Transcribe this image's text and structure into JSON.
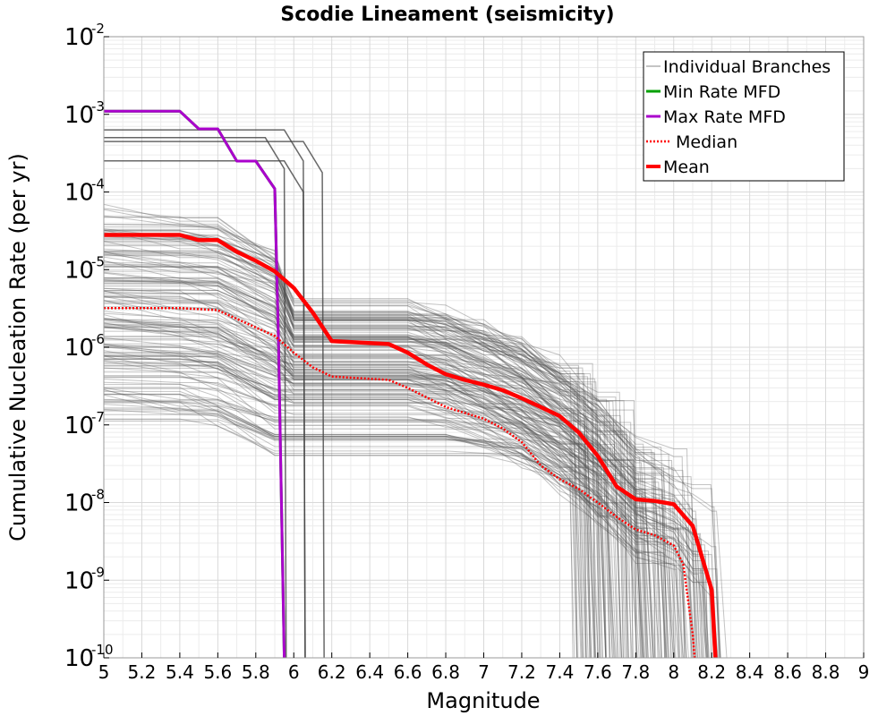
{
  "chart_data": {
    "type": "line",
    "title": "Scodie Lineament (seismicity)",
    "xlabel": "Magnitude",
    "ylabel": "Cumulative Nucleation Rate (per yr)",
    "xlim": [
      5,
      9
    ],
    "ylim_log10": [
      -10,
      -2
    ],
    "y_scale": "log",
    "grid": true,
    "legend_position": "top-right",
    "x_ticks": [
      "5",
      "5.2",
      "5.4",
      "5.6",
      "5.8",
      "6",
      "6.2",
      "6.4",
      "6.6",
      "6.8",
      "7",
      "7.2",
      "7.4",
      "7.6",
      "7.8",
      "8",
      "8.2",
      "8.4",
      "8.6",
      "8.8",
      "9"
    ],
    "y_ticks": [
      {
        "base": "10",
        "exp": "-2"
      },
      {
        "base": "10",
        "exp": "-3"
      },
      {
        "base": "10",
        "exp": "-4"
      },
      {
        "base": "10",
        "exp": "-5"
      },
      {
        "base": "10",
        "exp": "-6"
      },
      {
        "base": "10",
        "exp": "-7"
      },
      {
        "base": "10",
        "exp": "-8"
      },
      {
        "base": "10",
        "exp": "-9"
      },
      {
        "base": "10",
        "exp": "-10"
      }
    ],
    "series": [
      {
        "name": "Individual Branches",
        "color": "#555555",
        "style": "thin"
      },
      {
        "name": "Min Rate MFD",
        "color": "#00a000",
        "style": "solid",
        "x": [
          5.0,
          5.4,
          5.5,
          5.6,
          5.7,
          5.8,
          5.9,
          5.92,
          5.95
        ],
        "y": [
          0.0011,
          0.0011,
          0.00065,
          0.00065,
          0.00025,
          0.00025,
          0.00011,
          1e-06,
          1e-10
        ]
      },
      {
        "name": "Max Rate MFD",
        "color": "#aa00cc",
        "style": "solid",
        "x": [
          5.0,
          5.4,
          5.5,
          5.6,
          5.7,
          5.8,
          5.9,
          5.92,
          5.95
        ],
        "y": [
          0.0011,
          0.0011,
          0.00065,
          0.00065,
          0.00025,
          0.00025,
          0.00011,
          1e-06,
          1e-10
        ]
      },
      {
        "name": "Median",
        "color": "#ff0000",
        "style": "dotted",
        "x": [
          5.0,
          5.4,
          5.6,
          5.8,
          5.9,
          6.0,
          6.1,
          6.2,
          6.5,
          6.6,
          6.8,
          7.0,
          7.1,
          7.2,
          7.3,
          7.4,
          7.5,
          7.6,
          7.7,
          7.8,
          7.9,
          8.0,
          8.05,
          8.1,
          8.11
        ],
        "y": [
          3.2e-06,
          3.2e-06,
          3e-06,
          1.8e-06,
          1.4e-06,
          8.5e-07,
          5.5e-07,
          4.2e-07,
          3.8e-07,
          3e-07,
          1.7e-07,
          1.2e-07,
          9e-08,
          6e-08,
          3e-08,
          2e-08,
          1.5e-08,
          1e-08,
          6.5e-09,
          4.5e-09,
          3.8e-09,
          2.8e-09,
          1.6e-09,
          2e-10,
          1e-10
        ]
      },
      {
        "name": "Mean",
        "color": "#ff0000",
        "style": "thick",
        "x": [
          5.0,
          5.4,
          5.5,
          5.6,
          5.7,
          5.8,
          5.9,
          6.0,
          6.1,
          6.2,
          6.5,
          6.6,
          6.7,
          6.8,
          6.9,
          7.0,
          7.1,
          7.2,
          7.3,
          7.4,
          7.5,
          7.6,
          7.7,
          7.8,
          7.9,
          8.0,
          8.1,
          8.2,
          8.22
        ],
        "y": [
          2.8e-05,
          2.8e-05,
          2.4e-05,
          2.4e-05,
          1.7e-05,
          1.3e-05,
          9.5e-06,
          5.8e-06,
          2.8e-06,
          1.2e-06,
          1.1e-06,
          8.5e-07,
          6e-07,
          4.5e-07,
          3.8e-07,
          3.3e-07,
          2.8e-07,
          2.2e-07,
          1.7e-07,
          1.3e-07,
          8e-08,
          4e-08,
          1.6e-08,
          1.1e-08,
          1.05e-08,
          9.5e-09,
          5e-09,
          7.5e-10,
          1e-10
        ]
      }
    ]
  }
}
